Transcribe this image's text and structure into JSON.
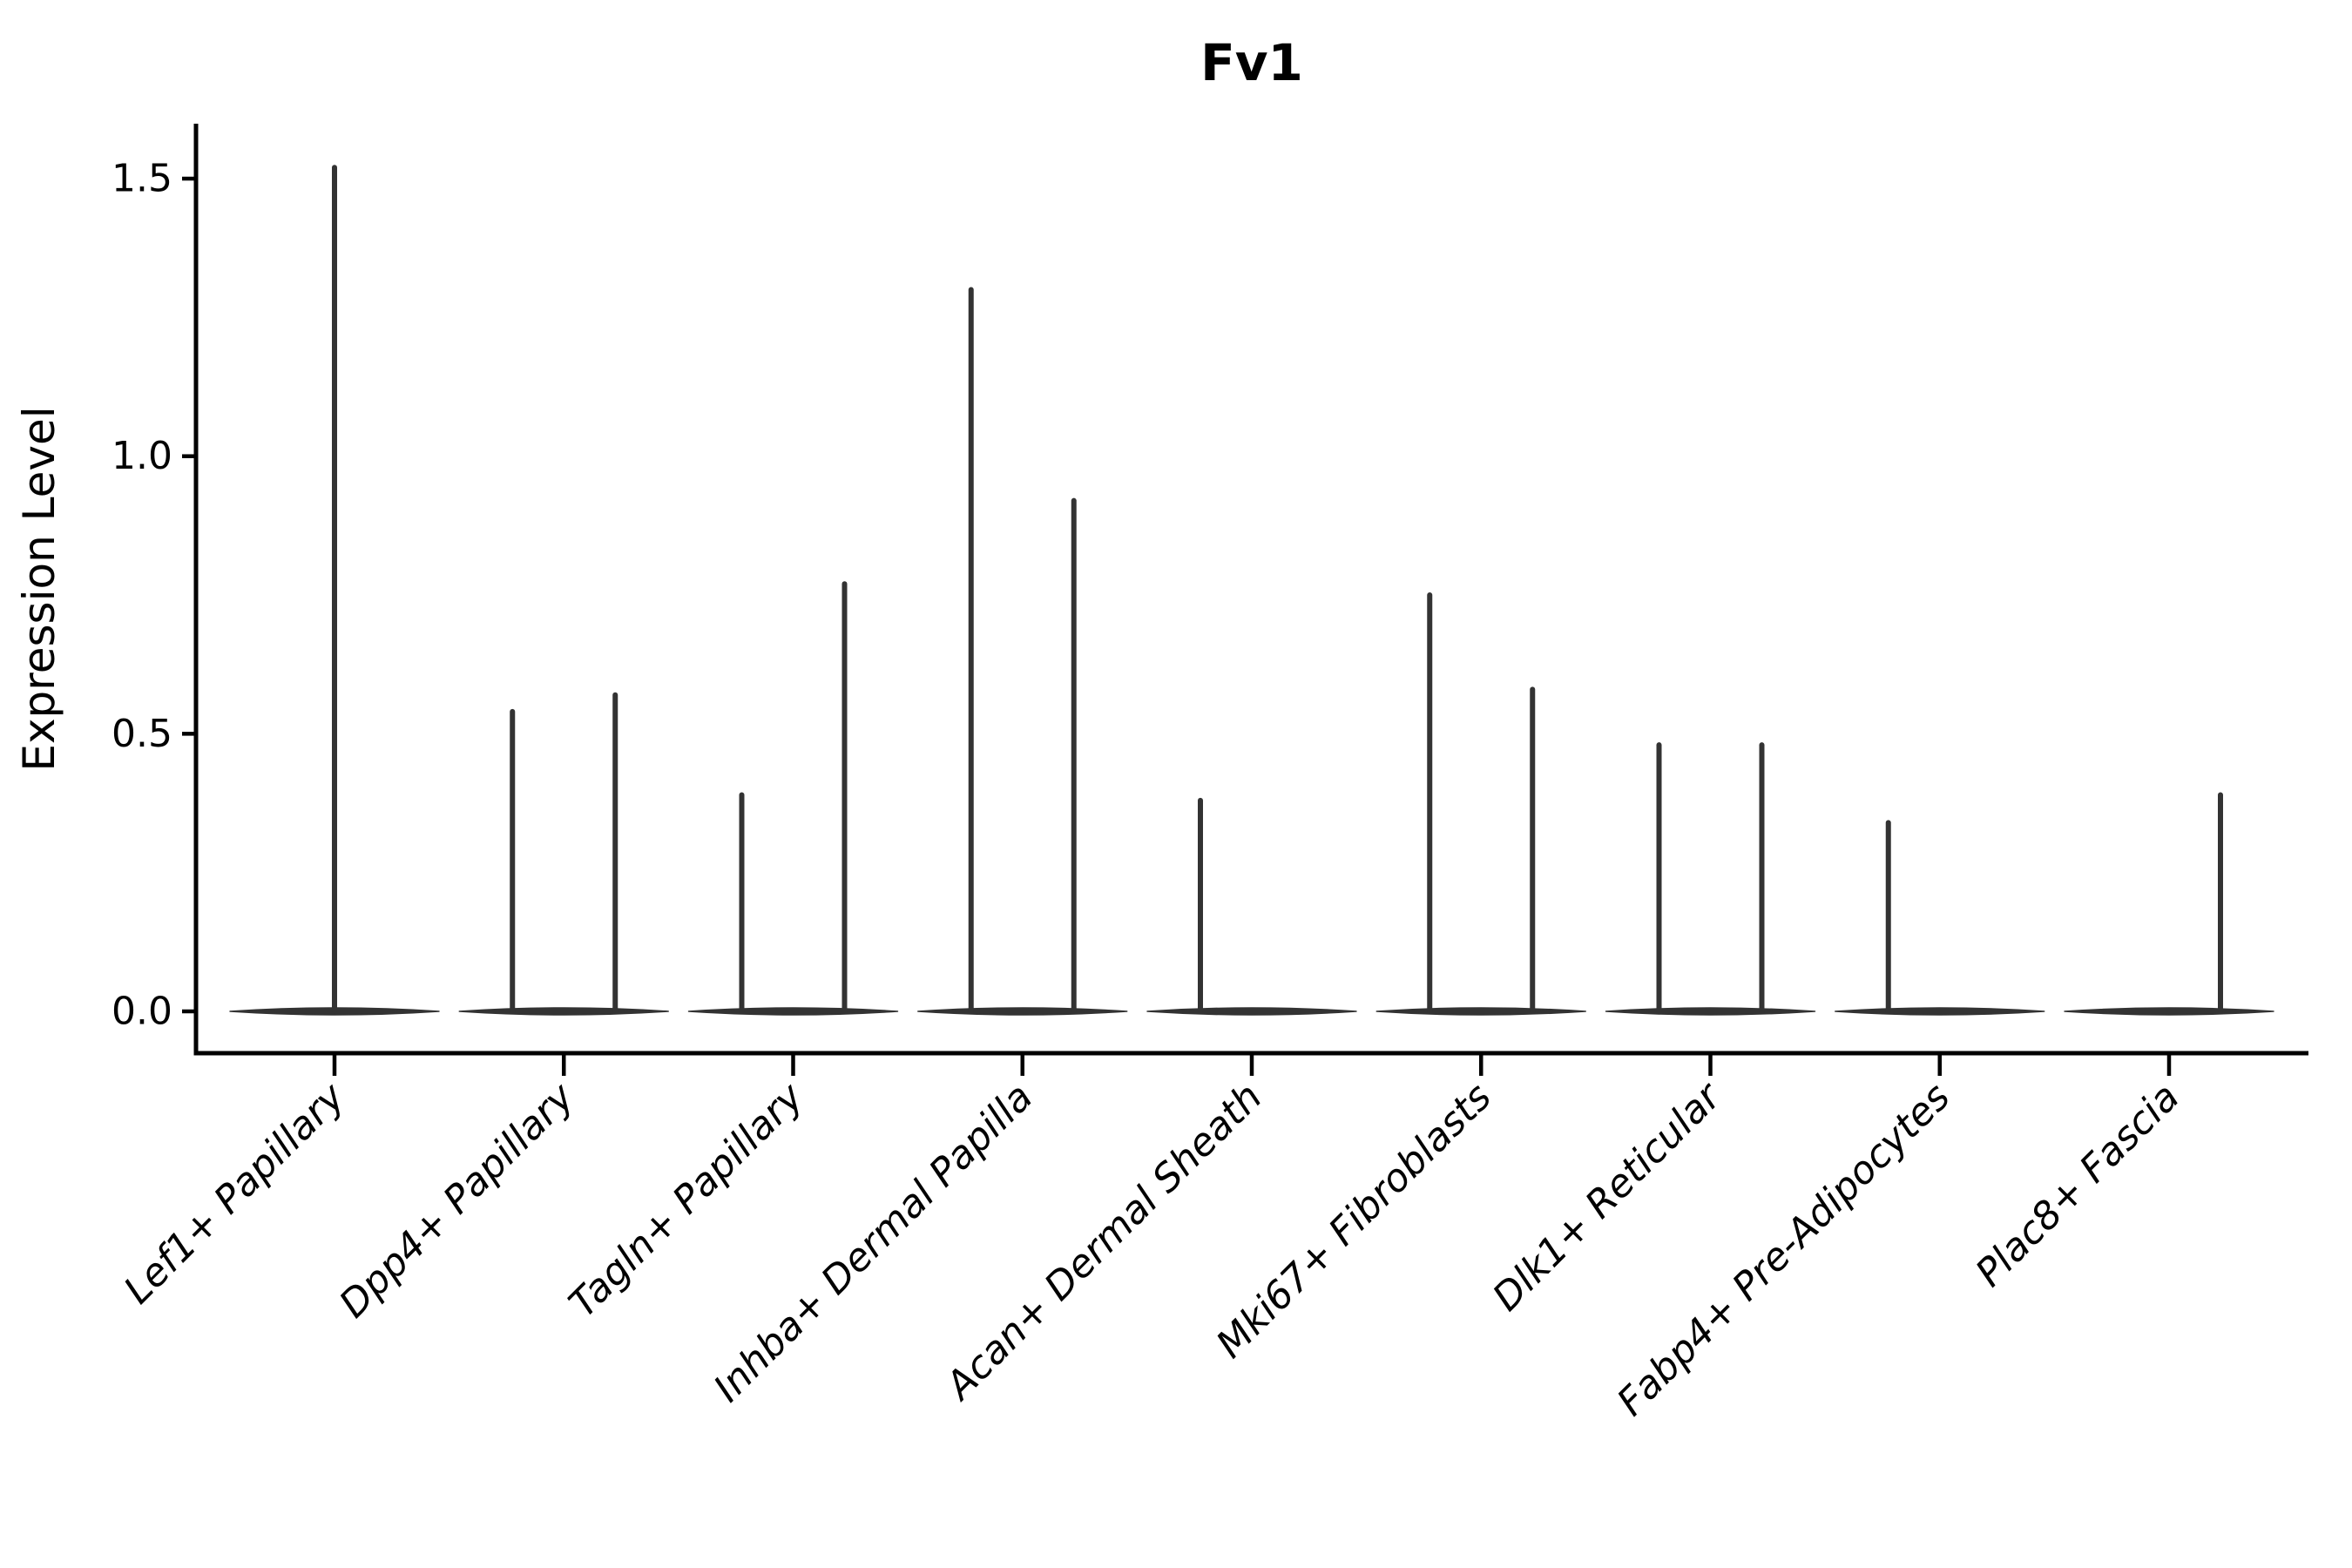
{
  "title": "Fv1",
  "colors": {
    "violin": "#333333",
    "axis": "#000000",
    "background": "#ffffff"
  },
  "chart_data": {
    "type": "violin",
    "title": "Fv1",
    "xlabel": "",
    "ylabel": "Expression Level",
    "ylim": [
      -0.08,
      1.6
    ],
    "grid": false,
    "legend": null,
    "baseline_value": 0.0,
    "yticks": [
      {
        "value": 1.5,
        "label": "1.5"
      },
      {
        "value": 1.0,
        "label": "1.0"
      },
      {
        "value": 0.5,
        "label": "0.5"
      },
      {
        "value": 0.0,
        "label": "0.0"
      }
    ],
    "categories": [
      "Lef1+ Papillary",
      "Dpp4+ Papillary",
      "Tagln+ Papillary",
      "Inhba+ Dermal Papilla",
      "Acan+ Dermal Sheath",
      "Mki67+ Fibroblasts",
      "Dlk1+ Reticular",
      "Fabp4+ Pre-Adipocytes",
      "Plac8+ Fascia"
    ],
    "groups": [
      {
        "category": "Lef1+ Papillary",
        "spikes": [
          {
            "pos": "center",
            "max": 1.52
          }
        ]
      },
      {
        "category": "Dpp4+ Papillary",
        "spikes": [
          {
            "pos": "left",
            "max": 0.54
          },
          {
            "pos": "right",
            "max": 0.57
          }
        ]
      },
      {
        "category": "Tagln+ Papillary",
        "spikes": [
          {
            "pos": "left",
            "max": 0.39
          },
          {
            "pos": "right",
            "max": 0.77
          }
        ]
      },
      {
        "category": "Inhba+ Dermal Papilla",
        "spikes": [
          {
            "pos": "left",
            "max": 1.3
          },
          {
            "pos": "right",
            "max": 0.92
          }
        ]
      },
      {
        "category": "Acan+ Dermal Sheath",
        "spikes": [
          {
            "pos": "left",
            "max": 0.38
          }
        ]
      },
      {
        "category": "Mki67+ Fibroblasts",
        "spikes": [
          {
            "pos": "left",
            "max": 0.75
          },
          {
            "pos": "right",
            "max": 0.58
          }
        ]
      },
      {
        "category": "Dlk1+ Reticular",
        "spikes": [
          {
            "pos": "left",
            "max": 0.48
          },
          {
            "pos": "right",
            "max": 0.48
          }
        ]
      },
      {
        "category": "Fabp4+ Pre-Adipocytes",
        "spikes": [
          {
            "pos": "left",
            "max": 0.34
          }
        ]
      },
      {
        "category": "Plac8+ Fascia",
        "spikes": [
          {
            "pos": "right",
            "max": 0.39
          }
        ]
      }
    ]
  }
}
